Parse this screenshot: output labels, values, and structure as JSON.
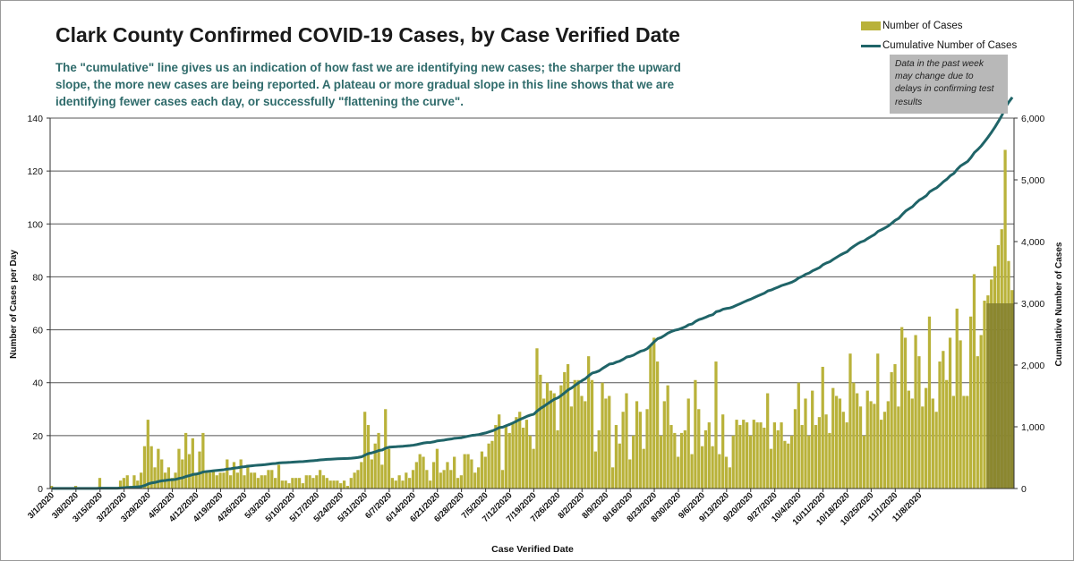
{
  "chart_data": {
    "type": "bar+line",
    "title": "Clark County Confirmed COVID-19 Cases, by Case Verified Date",
    "subtitle": "The \"cumulative\" line gives  us an indication of how fast we are identifying new cases; the sharper the upward slope, the more new cases are being reported. A plateau or more gradual slope in this line shows that we are identifying fewer cases each day, or successfully \"flattening the curve\".",
    "xlabel": "Case Verified Date",
    "ylabel": "Number of Cases per Day",
    "y2label": "Cumulative Number of Cases",
    "ylim": [
      0,
      140
    ],
    "y2lim": [
      0,
      6000
    ],
    "yticks": [
      "0",
      "20",
      "40",
      "60",
      "80",
      "100",
      "120",
      "140"
    ],
    "y2ticks": [
      "0",
      "1,000",
      "2,000",
      "3,000",
      "4,000",
      "5,000",
      "6,000"
    ],
    "xticks": [
      "3/1/2020",
      "3/8/2020",
      "3/15/2020",
      "3/22/2020",
      "3/29/2020",
      "4/5/2020",
      "4/12/2020",
      "4/19/2020",
      "4/26/2020",
      "5/3/2020",
      "5/10/2020",
      "5/17/2020",
      "5/24/2020",
      "5/31/2020",
      "6/7/2020",
      "6/14/2020",
      "6/21/2020",
      "6/28/2020",
      "7/5/2020",
      "7/12/2020",
      "7/19/2020",
      "7/26/2020",
      "8/2/2020",
      "8/9/2020",
      "8/16/2020",
      "8/23/2020",
      "8/30/2020",
      "9/6/2020",
      "9/13/2020",
      "9/20/2020",
      "9/27/2020",
      "10/4/2020",
      "10/11/2020",
      "10/18/2020",
      "10/25/2020",
      "11/1/2020",
      "11/8/2020"
    ],
    "series": [
      {
        "name": "Number of Cases",
        "kind": "bar",
        "axis": "left",
        "color": "#b9b23a",
        "values": [
          1,
          0,
          0,
          0,
          0,
          0,
          0,
          1,
          0,
          0,
          0,
          0,
          0,
          0,
          4,
          0,
          0,
          0,
          0,
          0,
          3,
          4,
          5,
          1,
          5,
          3,
          6,
          16,
          26,
          16,
          8,
          15,
          11,
          6,
          8,
          4,
          6,
          15,
          11,
          21,
          13,
          19,
          6,
          14,
          21,
          6,
          6,
          7,
          5,
          6,
          6,
          11,
          5,
          10,
          6,
          11,
          5,
          9,
          6,
          6,
          4,
          5,
          5,
          7,
          7,
          4,
          9,
          3,
          3,
          2,
          4,
          4,
          4,
          2,
          5,
          5,
          4,
          5,
          7,
          5,
          4,
          3,
          3,
          3,
          2,
          3,
          1,
          4,
          6,
          7,
          10,
          29,
          24,
          11,
          17,
          21,
          9,
          30,
          15,
          4,
          3,
          5,
          3,
          6,
          4,
          7,
          10,
          13,
          12,
          7,
          3,
          10,
          15,
          6,
          7,
          10,
          7,
          12,
          4,
          5,
          13,
          13,
          11,
          6,
          8,
          14,
          12,
          17,
          18,
          24,
          28,
          7,
          24,
          21,
          25,
          27,
          29,
          23,
          26,
          20,
          15,
          53,
          43,
          34,
          40,
          37,
          36,
          22,
          39,
          44,
          47,
          31,
          41,
          41,
          35,
          33,
          50,
          41,
          14,
          22,
          40,
          34,
          35,
          8,
          24,
          17,
          29,
          36,
          11,
          20,
          33,
          29,
          15,
          30,
          54,
          57,
          48,
          20,
          33,
          39,
          24,
          21,
          12,
          21,
          22,
          34,
          13,
          41,
          30,
          16,
          22,
          25,
          16,
          48,
          13,
          28,
          12,
          8,
          20,
          26,
          24,
          26,
          25,
          20,
          26,
          25,
          25,
          23,
          36,
          15,
          25,
          22,
          25,
          18,
          17,
          20,
          30,
          40,
          24,
          34,
          20,
          37,
          24,
          27,
          46,
          28,
          21,
          38,
          35,
          34,
          29,
          25,
          51,
          40,
          36,
          31,
          20,
          37,
          33,
          32,
          51,
          26,
          29,
          33,
          44,
          47,
          31,
          61,
          57,
          37,
          34,
          58,
          50,
          31,
          38,
          65,
          34,
          29,
          48,
          52,
          41,
          57,
          35,
          68,
          56,
          35,
          35,
          65,
          81,
          50,
          58,
          71,
          73,
          79,
          84,
          92,
          98,
          128,
          86,
          75
        ]
      },
      {
        "name": "Cumulative Number of Cases",
        "kind": "line",
        "axis": "right",
        "color": "#1f6468"
      }
    ]
  },
  "legend": {
    "bars": "Number of Cases",
    "line": "Cumulative Number of Cases"
  },
  "note": "Data in the past week may change due to delays in confirming test results",
  "colors": {
    "bar": "#b9b23a",
    "bar_recent": "#827f2e",
    "line": "#1f6468",
    "grid": "#555555"
  }
}
